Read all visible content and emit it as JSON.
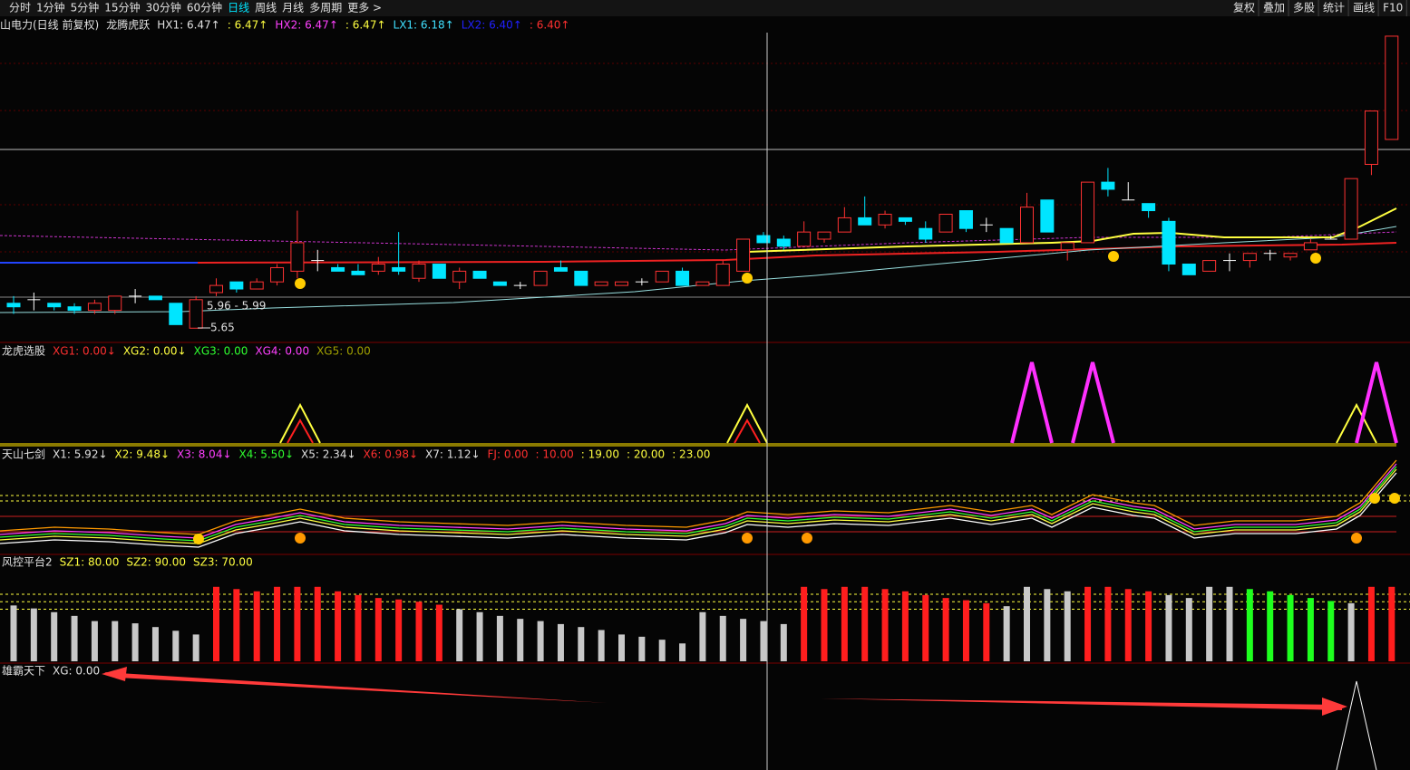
{
  "toolbar": {
    "left": [
      "分时",
      "1分钟",
      "5分钟",
      "15分钟",
      "30分钟",
      "60分钟",
      "日线",
      "周线",
      "月线",
      "多周期",
      "更多 >"
    ],
    "active_color": "#00e5ff",
    "right": [
      "复权",
      "叠加",
      "多股",
      "统计",
      "画线",
      "F10"
    ]
  },
  "main_panel": {
    "header": [
      {
        "text": "山电力(日线 前复权)",
        "color": "#e0e0e0"
      },
      {
        "text": "龙腾虎跃",
        "color": "#e0e0e0"
      },
      {
        "text": "HX1: 6.47↑",
        "color": "#e0e0e0"
      },
      {
        "text": ": 6.47↑",
        "color": "#ffff40"
      },
      {
        "text": "HX2: 6.47↑",
        "color": "#ff40ff"
      },
      {
        "text": ": 6.47↑",
        "color": "#ffff40"
      },
      {
        "text": "LX1: 6.18↑",
        "color": "#40e0ff"
      },
      {
        "text": "LX2: 6.40↑",
        "color": "#2020ff"
      },
      {
        "text": ": 6.40↑",
        "color": "#ff3030"
      }
    ],
    "range_label": "5.96 - 5.99",
    "low_label": "5.65",
    "ylim": [
      5.61,
      6.48
    ],
    "up_color": "#ff3232",
    "down_color": "#00e5ff",
    "flat_color": "#ffffff",
    "candles": [
      [
        5.72,
        5.74,
        5.69,
        5.71
      ],
      [
        5.73,
        5.75,
        5.7,
        5.73
      ],
      [
        5.72,
        5.72,
        5.7,
        5.71
      ],
      [
        5.71,
        5.72,
        5.69,
        5.7
      ],
      [
        5.7,
        5.73,
        5.69,
        5.72
      ],
      [
        5.7,
        5.74,
        5.69,
        5.74
      ],
      [
        5.74,
        5.76,
        5.72,
        5.74
      ],
      [
        5.74,
        5.74,
        5.73,
        5.73
      ],
      [
        5.72,
        5.72,
        5.66,
        5.66
      ],
      [
        5.65,
        5.74,
        5.65,
        5.73
      ],
      [
        5.75,
        5.79,
        5.74,
        5.77
      ],
      [
        5.78,
        5.78,
        5.75,
        5.76
      ],
      [
        5.76,
        5.79,
        5.76,
        5.78
      ],
      [
        5.78,
        5.83,
        5.77,
        5.82
      ],
      [
        5.81,
        5.98,
        5.79,
        5.89
      ],
      [
        5.84,
        5.87,
        5.81,
        5.84
      ],
      [
        5.82,
        5.83,
        5.81,
        5.81
      ],
      [
        5.81,
        5.83,
        5.8,
        5.8
      ],
      [
        5.81,
        5.85,
        5.8,
        5.83
      ],
      [
        5.82,
        5.92,
        5.8,
        5.81
      ],
      [
        5.79,
        5.84,
        5.78,
        5.83
      ],
      [
        5.83,
        5.83,
        5.79,
        5.79
      ],
      [
        5.78,
        5.82,
        5.76,
        5.81
      ],
      [
        5.81,
        5.81,
        5.79,
        5.79
      ],
      [
        5.78,
        5.78,
        5.77,
        5.77
      ],
      [
        5.77,
        5.78,
        5.76,
        5.77
      ],
      [
        5.77,
        5.81,
        5.77,
        5.81
      ],
      [
        5.82,
        5.84,
        5.81,
        5.81
      ],
      [
        5.81,
        5.81,
        5.77,
        5.77
      ],
      [
        5.77,
        5.78,
        5.77,
        5.78
      ],
      [
        5.77,
        5.78,
        5.77,
        5.78
      ],
      [
        5.78,
        5.79,
        5.77,
        5.78
      ],
      [
        5.78,
        5.81,
        5.78,
        5.81
      ],
      [
        5.81,
        5.82,
        5.77,
        5.77
      ],
      [
        5.77,
        5.78,
        5.77,
        5.78
      ],
      [
        5.77,
        5.84,
        5.77,
        5.83
      ],
      [
        5.81,
        5.9,
        5.81,
        5.9
      ],
      [
        5.91,
        5.92,
        5.89,
        5.89
      ],
      [
        5.9,
        5.91,
        5.87,
        5.88
      ],
      [
        5.88,
        5.95,
        5.88,
        5.92
      ],
      [
        5.9,
        5.92,
        5.89,
        5.92
      ],
      [
        5.92,
        5.99,
        5.92,
        5.96
      ],
      [
        5.96,
        6.02,
        5.94,
        5.94
      ],
      [
        5.94,
        5.98,
        5.93,
        5.97
      ],
      [
        5.96,
        5.96,
        5.94,
        5.95
      ],
      [
        5.93,
        5.95,
        5.89,
        5.9
      ],
      [
        5.92,
        5.97,
        5.92,
        5.97
      ],
      [
        5.98,
        5.98,
        5.92,
        5.93
      ],
      [
        5.94,
        5.96,
        5.92,
        5.94
      ],
      [
        5.93,
        5.93,
        5.89,
        5.89
      ],
      [
        5.89,
        6.03,
        5.89,
        5.99
      ],
      [
        6.01,
        6.01,
        5.92,
        5.92
      ],
      [
        5.87,
        5.89,
        5.84,
        5.89
      ],
      [
        5.89,
        6.06,
        5.89,
        6.06
      ],
      [
        6.06,
        6.1,
        6.02,
        6.04
      ],
      [
        6.01,
        6.06,
        6.01,
        6.01
      ],
      [
        6.0,
        6.0,
        5.96,
        5.98
      ],
      [
        5.95,
        5.96,
        5.81,
        5.83
      ],
      [
        5.83,
        5.83,
        5.8,
        5.8
      ],
      [
        5.81,
        5.84,
        5.81,
        5.84
      ],
      [
        5.84,
        5.86,
        5.81,
        5.84
      ],
      [
        5.84,
        5.86,
        5.82,
        5.86
      ],
      [
        5.86,
        5.87,
        5.84,
        5.86
      ],
      [
        5.85,
        5.86,
        5.84,
        5.86
      ],
      [
        5.87,
        5.9,
        5.87,
        5.89
      ],
      [
        5.9,
        5.91,
        5.9,
        5.9
      ],
      [
        5.9,
        6.07,
        5.9,
        6.07
      ],
      [
        6.11,
        6.26,
        6.08,
        6.26
      ],
      [
        6.18,
        6.47,
        6.18,
        6.47
      ]
    ]
  },
  "signal_panel": {
    "header": [
      {
        "text": "龙虎选股",
        "color": "#e0e0e0"
      },
      {
        "text": "XG1: 0.00↓",
        "color": "#ff3030"
      },
      {
        "text": "XG2: 0.00↓",
        "color": "#ffff40"
      },
      {
        "text": "XG3: 0.00",
        "color": "#30ff30"
      },
      {
        "text": "XG4: 0.00",
        "color": "#ff40ff"
      },
      {
        "text": "XG5: 0.00",
        "color": "#a0a000"
      }
    ]
  },
  "sword_panel": {
    "header": [
      {
        "text": "天山七剑",
        "color": "#e0e0e0"
      },
      {
        "text": "X1: 5.92↓",
        "color": "#e0e0e0"
      },
      {
        "text": "X2: 9.48↓",
        "color": "#ffff40"
      },
      {
        "text": "X3: 8.04↓",
        "color": "#ff40ff"
      },
      {
        "text": "X4: 5.50↓",
        "color": "#30ff30"
      },
      {
        "text": "X5: 2.34↓",
        "color": "#e0e0e0"
      },
      {
        "text": "X6: 0.98↓",
        "color": "#ff3030"
      },
      {
        "text": "X7: 1.12↓",
        "color": "#e0e0e0"
      },
      {
        "text": "FJ: 0.00",
        "color": "#ff3030"
      },
      {
        "text": ": 10.00",
        "color": "#ff3030"
      },
      {
        "text": ": 19.00",
        "color": "#ffff40"
      },
      {
        "text": ": 20.00",
        "color": "#ffff40"
      },
      {
        "text": ": 23.00",
        "color": "#ffff40"
      }
    ]
  },
  "risk_panel": {
    "title": "风控平台2",
    "title_color": "#e0e0e0",
    "ylim": [
      0,
      100
    ],
    "levels": [
      {
        "label": "SZ1: 80.00",
        "value": 80
      },
      {
        "label": "SZ2: 90.00",
        "value": 90
      },
      {
        "label": "SZ3: 70.00",
        "value": 70
      }
    ],
    "level_color": "#ffff40",
    "groups": [
      {
        "color": "#c8c8c8",
        "values": [
          75,
          71,
          66,
          61,
          54,
          54,
          51,
          46,
          41,
          36
        ]
      },
      {
        "color": "#ff1e1e",
        "values": [
          100,
          97,
          94,
          100,
          100,
          100,
          94,
          89,
          85,
          83,
          80,
          76
        ]
      },
      {
        "color": "#c8c8c8",
        "values": [
          70,
          66,
          61,
          57,
          54,
          50,
          46,
          42,
          36,
          33,
          29,
          24,
          66,
          61,
          57,
          54,
          50
        ]
      },
      {
        "color": "#ff1e1e",
        "values": [
          100,
          97,
          100,
          100,
          97,
          94,
          89,
          85,
          82,
          78
        ]
      },
      {
        "color": "#c8c8c8",
        "values": [
          74,
          100,
          97,
          94
        ]
      },
      {
        "color": "#ff1e1e",
        "values": [
          100,
          100,
          97,
          94
        ]
      },
      {
        "color": "#c8c8c8",
        "values": [
          89,
          85,
          100,
          100
        ]
      },
      {
        "color": "#1eff1e",
        "values": [
          97,
          94,
          89,
          85,
          81
        ]
      },
      {
        "color": "#c8c8c8",
        "values": [
          78
        ]
      },
      {
        "color": "#ff1e1e",
        "values": [
          100,
          100
        ]
      }
    ]
  },
  "bottom_panel": {
    "header": [
      {
        "text": "雄霸天下",
        "color": "#e0e0e0"
      },
      {
        "text": "XG: 0.00",
        "color": "#e0e0e0"
      }
    ]
  }
}
